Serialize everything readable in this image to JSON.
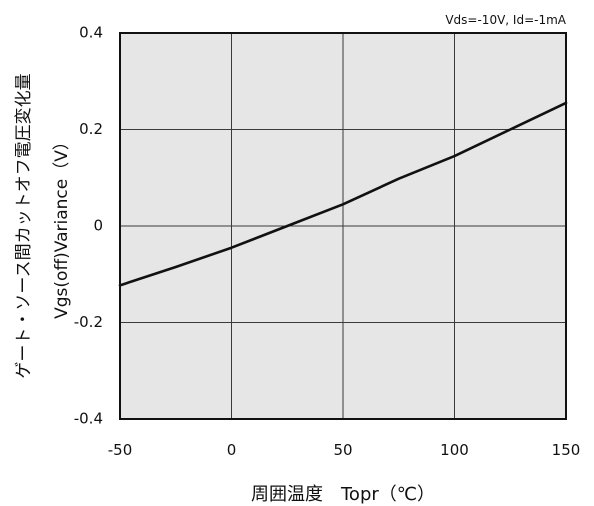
{
  "chart_data": {
    "type": "line",
    "title": "",
    "annotation": "Vds=-10V, Id=-1mA",
    "xlabel": "周囲温度　Topr（℃）",
    "ylabel_lines": [
      "ゲート・ソース間カットオフ電圧変化量",
      "Vgs(off)Variance（V）"
    ],
    "xlim": [
      -50,
      150
    ],
    "ylim": [
      -0.4,
      0.4
    ],
    "x_ticks": [
      -50,
      0,
      50,
      100,
      150
    ],
    "x_tick_labels": [
      "-50",
      "0",
      "50",
      "100",
      "150"
    ],
    "y_ticks": [
      0.4,
      0.2,
      0,
      -0.2,
      -0.4
    ],
    "y_tick_labels": [
      "0.4",
      "0.2",
      "0",
      "-0.2",
      "-0.4"
    ],
    "grid": true,
    "colors": {
      "plot_background": "#e6e6e6",
      "grid": "#3a3a3a",
      "line": "#111111",
      "frame": "#111111"
    },
    "series": [
      {
        "x": [
          -50,
          -25,
          0,
          25,
          50,
          75,
          100,
          125,
          150
        ],
        "y": [
          -0.123,
          -0.085,
          -0.045,
          0.0,
          0.045,
          0.098,
          0.145,
          0.2,
          0.255
        ]
      }
    ]
  }
}
